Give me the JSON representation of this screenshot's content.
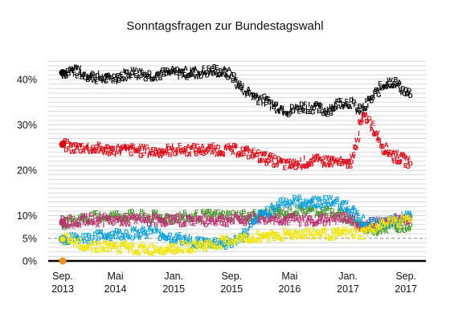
{
  "chart_data": {
    "type": "scatter",
    "title": "Sonntagsfragen zur Bundestagswahl",
    "y_ticks": [
      {
        "value": 0,
        "label": "0%"
      },
      {
        "value": 5,
        "label": "5%"
      },
      {
        "value": 10,
        "label": "10%"
      },
      {
        "value": 20,
        "label": "20%"
      },
      {
        "value": 30,
        "label": "30%"
      },
      {
        "value": 40,
        "label": "40%"
      }
    ],
    "x_ticks": [
      {
        "date": "2013-09-22",
        "line1": "Sep.",
        "line2": "2013"
      },
      {
        "date": "2014-05-01",
        "line1": "Mai",
        "line2": "2014"
      },
      {
        "date": "2015-01-01",
        "line1": "Jan.",
        "line2": "2015"
      },
      {
        "date": "2015-09-01",
        "line1": "Sep.",
        "line2": "2015"
      },
      {
        "date": "2016-05-01",
        "line1": "Mai",
        "line2": "2016"
      },
      {
        "date": "2017-01-01",
        "line1": "Jan.",
        "line2": "2017"
      },
      {
        "date": "2017-09-01",
        "line1": "Sep.",
        "line2": "2017"
      }
    ],
    "x_range": [
      "2013-09-22",
      "2017-09-24"
    ],
    "y_range": [
      0,
      45
    ],
    "reference_line": 5,
    "series": [
      {
        "color": "#000000",
        "election_value": 41.5,
        "points": [
          [
            "2013-09-22",
            41.5
          ],
          [
            "2013-11-01",
            42
          ],
          [
            "2014-01-01",
            41
          ],
          [
            "2014-04-01",
            40
          ],
          [
            "2014-07-01",
            41.5
          ],
          [
            "2014-10-01",
            41
          ],
          [
            "2015-01-01",
            41.5
          ],
          [
            "2015-04-01",
            41.5
          ],
          [
            "2015-07-01",
            42
          ],
          [
            "2015-09-01",
            41
          ],
          [
            "2015-10-15",
            38
          ],
          [
            "2015-12-01",
            36.5
          ],
          [
            "2016-02-01",
            35
          ],
          [
            "2016-03-15",
            34
          ],
          [
            "2016-05-01",
            33
          ],
          [
            "2016-06-15",
            34
          ],
          [
            "2016-08-01",
            34
          ],
          [
            "2016-10-01",
            33
          ],
          [
            "2016-12-01",
            35
          ],
          [
            "2017-01-15",
            35
          ],
          [
            "2017-02-15",
            33
          ],
          [
            "2017-03-15",
            34
          ],
          [
            "2017-04-15",
            36
          ],
          [
            "2017-05-15",
            38
          ],
          [
            "2017-06-15",
            39.5
          ],
          [
            "2017-07-15",
            39.5
          ],
          [
            "2017-08-15",
            38
          ],
          [
            "2017-09-20",
            36.5
          ]
        ]
      },
      {
        "color": "#e3000f",
        "election_value": 25.7,
        "points": [
          [
            "2013-09-22",
            25.7
          ],
          [
            "2013-11-01",
            25
          ],
          [
            "2014-01-01",
            25
          ],
          [
            "2014-04-01",
            24.5
          ],
          [
            "2014-07-01",
            24.5
          ],
          [
            "2014-10-01",
            24
          ],
          [
            "2015-01-01",
            24.5
          ],
          [
            "2015-04-01",
            24.5
          ],
          [
            "2015-07-01",
            24.5
          ],
          [
            "2015-09-01",
            24.5
          ],
          [
            "2015-11-01",
            24
          ],
          [
            "2016-01-01",
            23
          ],
          [
            "2016-03-01",
            22
          ],
          [
            "2016-05-01",
            21
          ],
          [
            "2016-08-01",
            22
          ],
          [
            "2016-11-01",
            22
          ],
          [
            "2017-01-01",
            21
          ],
          [
            "2017-01-25",
            23
          ],
          [
            "2017-02-15",
            29
          ],
          [
            "2017-03-10",
            32
          ],
          [
            "2017-04-01",
            31
          ],
          [
            "2017-05-01",
            28
          ],
          [
            "2017-06-01",
            25
          ],
          [
            "2017-07-15",
            23
          ],
          [
            "2017-08-15",
            22.5
          ],
          [
            "2017-09-20",
            21.5
          ]
        ]
      },
      {
        "color": "#46962b",
        "election_value": 8.4,
        "points": [
          [
            "2013-09-22",
            8.4
          ],
          [
            "2014-01-01",
            9.5
          ],
          [
            "2014-06-01",
            10
          ],
          [
            "2015-01-01",
            9.5
          ],
          [
            "2015-06-01",
            10
          ],
          [
            "2015-09-01",
            10
          ],
          [
            "2016-01-01",
            10
          ],
          [
            "2016-06-01",
            11
          ],
          [
            "2016-10-01",
            11
          ],
          [
            "2017-01-01",
            9.5
          ],
          [
            "2017-03-01",
            7.5
          ],
          [
            "2017-05-01",
            7
          ],
          [
            "2017-07-01",
            7.5
          ],
          [
            "2017-09-20",
            8
          ]
        ]
      },
      {
        "color": "#be3075",
        "election_value": 8.6,
        "points": [
          [
            "2013-09-22",
            8.6
          ],
          [
            "2014-01-01",
            9
          ],
          [
            "2014-06-01",
            9
          ],
          [
            "2015-01-01",
            9
          ],
          [
            "2015-06-01",
            9
          ],
          [
            "2015-09-01",
            9
          ],
          [
            "2016-01-01",
            9.5
          ],
          [
            "2016-06-01",
            9
          ],
          [
            "2016-10-01",
            9
          ],
          [
            "2017-01-01",
            9.5
          ],
          [
            "2017-03-01",
            7.5
          ],
          [
            "2017-05-01",
            8.5
          ],
          [
            "2017-07-01",
            9
          ],
          [
            "2017-09-20",
            9.5
          ]
        ]
      },
      {
        "color": "#009ee0",
        "election_value": 4.7,
        "points": [
          [
            "2013-09-22",
            4.7
          ],
          [
            "2014-01-01",
            5
          ],
          [
            "2014-06-01",
            6
          ],
          [
            "2014-10-01",
            6.5
          ],
          [
            "2015-01-01",
            5
          ],
          [
            "2015-05-01",
            4
          ],
          [
            "2015-09-01",
            4
          ],
          [
            "2015-11-01",
            6
          ],
          [
            "2016-01-01",
            10
          ],
          [
            "2016-04-01",
            13
          ],
          [
            "2016-08-01",
            13
          ],
          [
            "2016-11-01",
            13
          ],
          [
            "2017-01-01",
            12
          ],
          [
            "2017-03-01",
            9
          ],
          [
            "2017-05-01",
            8
          ],
          [
            "2017-07-01",
            8.5
          ],
          [
            "2017-09-20",
            10
          ]
        ]
      },
      {
        "color": "#f3e600",
        "election_value": 4.8,
        "points": [
          [
            "2013-09-22",
            4.8
          ],
          [
            "2014-01-01",
            3.5
          ],
          [
            "2014-06-01",
            3
          ],
          [
            "2014-10-01",
            2.5
          ],
          [
            "2015-01-01",
            3
          ],
          [
            "2015-06-01",
            3.5
          ],
          [
            "2015-09-01",
            4.5
          ],
          [
            "2016-01-01",
            5.5
          ],
          [
            "2016-06-01",
            6
          ],
          [
            "2016-10-01",
            6
          ],
          [
            "2017-01-01",
            6
          ],
          [
            "2017-03-01",
            6
          ],
          [
            "2017-05-01",
            7.5
          ],
          [
            "2017-07-01",
            8.5
          ],
          [
            "2017-09-20",
            9
          ]
        ]
      },
      {
        "color": "#f0901c",
        "election_value": 0,
        "points": [
          [
            "2013-09-22",
            0
          ]
        ]
      }
    ]
  }
}
